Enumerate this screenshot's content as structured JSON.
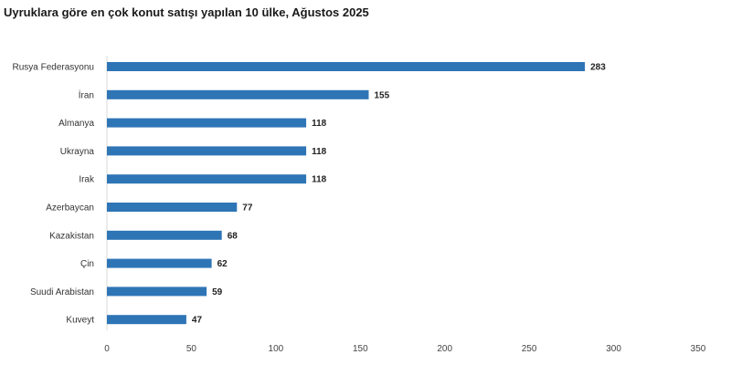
{
  "chart_data": {
    "type": "bar",
    "orientation": "horizontal",
    "title": "Uyruklara göre en çok konut satışı yapılan 10 ülke, Ağustos 2025",
    "categories": [
      "Rusya Federasyonu",
      "İran",
      "Almanya",
      "Ukrayna",
      "Irak",
      "Azerbaycan",
      "Kazakistan",
      "Çin",
      "Suudi Arabistan",
      "Kuveyt"
    ],
    "values": [
      283,
      155,
      118,
      118,
      118,
      77,
      68,
      62,
      59,
      47
    ],
    "value_labels": [
      "283",
      "155",
      "118",
      "118",
      "118",
      "77",
      "68",
      "62",
      "59",
      "47"
    ],
    "xlabel": "",
    "ylabel": "",
    "xlim": [
      0,
      350
    ],
    "xticks": [
      0,
      50,
      100,
      150,
      200,
      250,
      300,
      350
    ],
    "grid": false,
    "legend": "none",
    "bar_color": "#2e75b6"
  }
}
